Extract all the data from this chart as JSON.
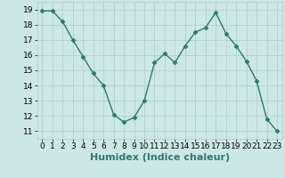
{
  "x": [
    0,
    1,
    2,
    3,
    4,
    5,
    6,
    7,
    8,
    9,
    10,
    11,
    12,
    13,
    14,
    15,
    16,
    17,
    18,
    19,
    20,
    21,
    22,
    23
  ],
  "y": [
    18.9,
    18.9,
    18.2,
    17.0,
    15.9,
    14.8,
    14.0,
    12.1,
    11.6,
    11.9,
    13.0,
    15.5,
    16.1,
    15.5,
    16.6,
    17.5,
    17.8,
    18.8,
    17.4,
    16.6,
    15.6,
    14.3,
    11.8,
    11.0
  ],
  "line_color": "#2d7a70",
  "marker": "D",
  "marker_size": 2.5,
  "bg_color": "#cce8e6",
  "grid_color": "#aaccca",
  "xlabel": "Humidex (Indice chaleur)",
  "xlabel_fontsize": 8,
  "xlim": [
    -0.5,
    23.5
  ],
  "ylim": [
    10.5,
    19.5
  ],
  "yticks": [
    11,
    12,
    13,
    14,
    15,
    16,
    17,
    18,
    19
  ],
  "xticks": [
    0,
    1,
    2,
    3,
    4,
    5,
    6,
    7,
    8,
    9,
    10,
    11,
    12,
    13,
    14,
    15,
    16,
    17,
    18,
    19,
    20,
    21,
    22,
    23
  ],
  "tick_fontsize": 6.5
}
